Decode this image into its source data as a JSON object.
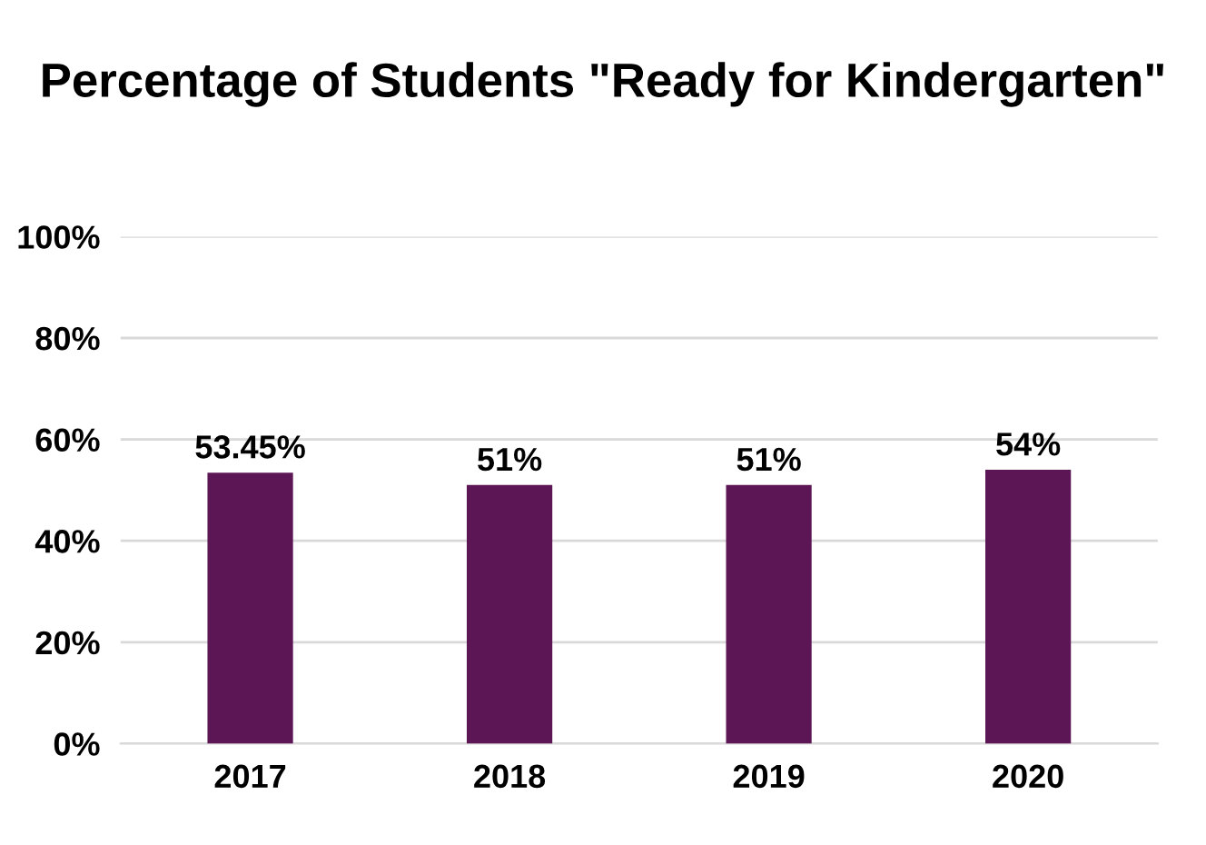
{
  "chart_data": {
    "type": "bar",
    "title": "Percentage of Students \"Ready for Kindergarten\"",
    "categories": [
      "2017",
      "2018",
      "2019",
      "2020"
    ],
    "values": [
      53.45,
      51,
      51,
      54
    ],
    "value_labels": [
      "53.45%",
      "51%",
      "51%",
      "54%"
    ],
    "color": "#5c1656",
    "ylim": [
      0,
      100
    ],
    "yticks": [
      {
        "value": 0,
        "label": "0%"
      },
      {
        "value": 20,
        "label": "20%"
      },
      {
        "value": 40,
        "label": "40%"
      },
      {
        "value": 60,
        "label": "60%"
      },
      {
        "value": 80,
        "label": "80%"
      },
      {
        "value": 100,
        "label": "100%"
      }
    ],
    "grid": "y",
    "legend": false
  }
}
